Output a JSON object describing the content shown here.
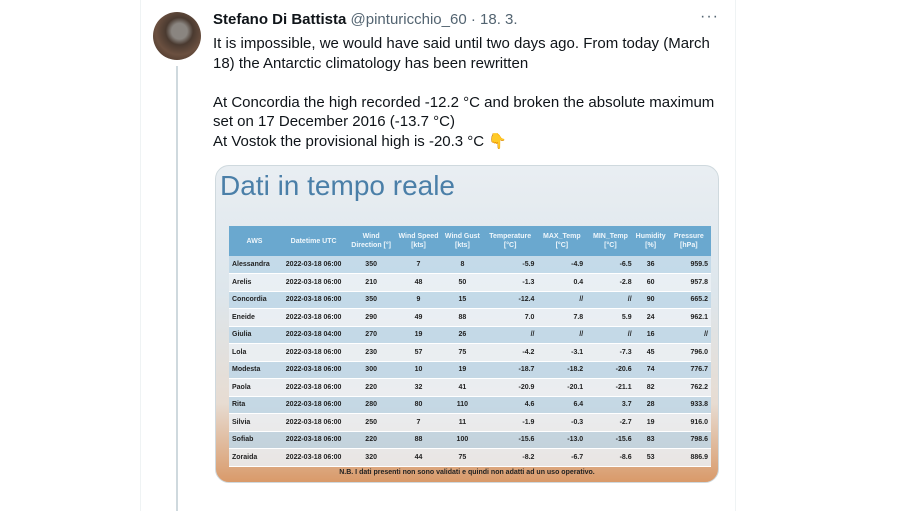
{
  "tweet": {
    "author_name": "Stefano Di Battista",
    "handle": "@pinturicchio_60",
    "separator": "·",
    "date": "18. 3.",
    "more_icon": "more-horizontal-icon",
    "more_label": "···",
    "lines": [
      "It is impossible, we would have said until two days ago. From today (March 18) the Antarctic climatology has been rewritten",
      "At Concordia the high recorded -12.2 °C and broken the absolute maximum set on 17 December 2016 (-13.7 °C)",
      "At Vostok the provisional high is -20.3 °C 👇"
    ]
  },
  "image": {
    "title": "Dati in tempo reale",
    "headers": [
      "AWS",
      "Datetime UTC",
      "Wind Direction [°]",
      "Wind Speed [kts]",
      "Wind Gust [kts]",
      "Temperature [°C]",
      "MAX_Temp [°C]",
      "MIN_Temp [°C]",
      "Humidity [%]",
      "Pressure [hPa]"
    ],
    "rows": [
      [
        "Alessandra",
        "2022-03-18 06:00",
        "350",
        "7",
        "8",
        "-5.9",
        "-4.9",
        "-6.5",
        "36",
        "959.5"
      ],
      [
        "Arelis",
        "2022-03-18 06:00",
        "210",
        "48",
        "50",
        "-1.3",
        "0.4",
        "-2.8",
        "60",
        "957.8"
      ],
      [
        "Concordia",
        "2022-03-18 06:00",
        "350",
        "9",
        "15",
        "-12.4",
        "//",
        "//",
        "90",
        "665.2"
      ],
      [
        "Eneide",
        "2022-03-18 06:00",
        "290",
        "49",
        "88",
        "7.0",
        "7.8",
        "5.9",
        "24",
        "962.1"
      ],
      [
        "Giulia",
        "2022-03-18 04:00",
        "270",
        "19",
        "26",
        "//",
        "//",
        "//",
        "16",
        "//"
      ],
      [
        "Lola",
        "2022-03-18 06:00",
        "230",
        "57",
        "75",
        "-4.2",
        "-3.1",
        "-7.3",
        "45",
        "796.0"
      ],
      [
        "Modesta",
        "2022-03-18 06:00",
        "300",
        "10",
        "19",
        "-18.7",
        "-18.2",
        "-20.6",
        "74",
        "776.7"
      ],
      [
        "Paola",
        "2022-03-18 06:00",
        "220",
        "32",
        "41",
        "-20.9",
        "-20.1",
        "-21.1",
        "82",
        "762.2"
      ],
      [
        "Rita",
        "2022-03-18 06:00",
        "280",
        "80",
        "110",
        "4.6",
        "6.4",
        "3.7",
        "28",
        "933.8"
      ],
      [
        "Silvia",
        "2022-03-18 06:00",
        "250",
        "7",
        "11",
        "-1.9",
        "-0.3",
        "-2.7",
        "19",
        "916.0"
      ],
      [
        "Sofiab",
        "2022-03-18 06:00",
        "220",
        "88",
        "100",
        "-15.6",
        "-13.0",
        "-15.6",
        "83",
        "798.6"
      ],
      [
        "Zoraida",
        "2022-03-18 06:00",
        "320",
        "44",
        "75",
        "-8.2",
        "-6.7",
        "-8.6",
        "53",
        "886.9"
      ]
    ],
    "note": "N.B. I dati presenti non sono validati e quindi non adatti ad un uso operativo."
  }
}
